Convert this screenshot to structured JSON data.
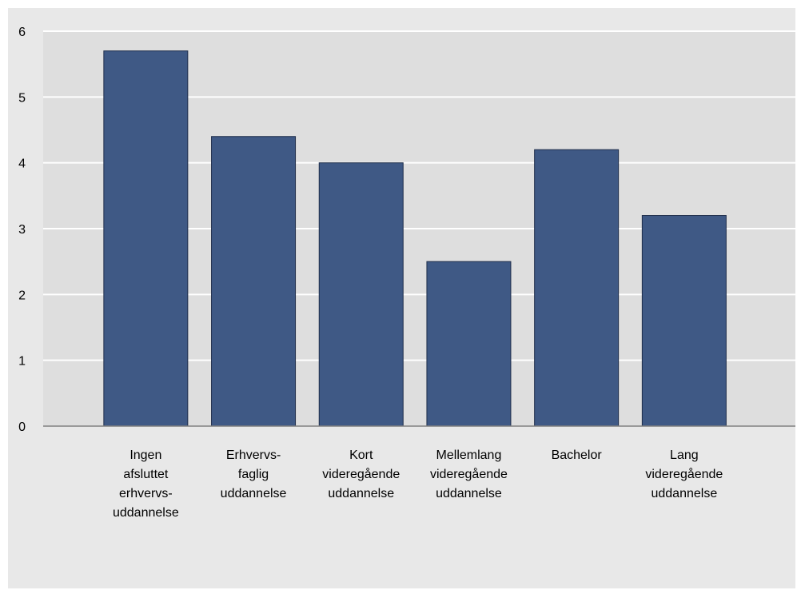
{
  "chart_data": {
    "type": "bar",
    "title": "",
    "xlabel": "",
    "ylabel": "",
    "categories": [
      "Ingen\nafsluttet\nerhvervs-\nuddannelse",
      "Erhvervs-\nfaglig\nuddannelse",
      "Kort\nvideregående\nuddannelse",
      "Mellemlang\nvideregående\nuddannelse",
      "Bachelor",
      "Lang\nvideregående\nuddannelse"
    ],
    "values": [
      5.7,
      4.4,
      4.0,
      2.5,
      4.2,
      3.2
    ],
    "ylim": [
      0,
      6
    ],
    "yticks": [
      "0",
      "1",
      "2",
      "3",
      "4",
      "5",
      "6"
    ],
    "grid": true,
    "legend": "none"
  },
  "colors": {
    "bar": "#3f5985",
    "bar_edge": "#1e2d4a",
    "plot_background": "#dedede",
    "frame_background": "#e8e8e8",
    "gridline": "#ffffff",
    "axis": "#808080"
  }
}
